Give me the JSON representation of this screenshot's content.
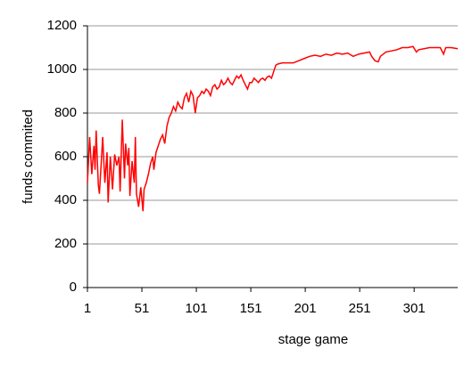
{
  "chart_data": {
    "type": "line",
    "x_label": "stage game",
    "y_label": "funds commited",
    "x": [
      1,
      3,
      5,
      7,
      8,
      9,
      11,
      12,
      14,
      15,
      17,
      19,
      20,
      22,
      24,
      26,
      28,
      30,
      31,
      33,
      35,
      36,
      38,
      39,
      40,
      42,
      44,
      45,
      46,
      48,
      50,
      52,
      53,
      55,
      57,
      59,
      61,
      62,
      64,
      66,
      68,
      70,
      72,
      74,
      76,
      78,
      80,
      82,
      84,
      86,
      88,
      90,
      92,
      94,
      96,
      98,
      100,
      102,
      104,
      106,
      108,
      110,
      112,
      114,
      116,
      118,
      120,
      122,
      124,
      126,
      128,
      130,
      132,
      134,
      136,
      138,
      140,
      142,
      144,
      146,
      148,
      150,
      152,
      154,
      156,
      158,
      160,
      162,
      164,
      166,
      168,
      170,
      172,
      174,
      176,
      180,
      185,
      190,
      195,
      200,
      205,
      210,
      215,
      220,
      225,
      230,
      235,
      240,
      245,
      250,
      255,
      260,
      262,
      265,
      268,
      270,
      275,
      280,
      285,
      290,
      295,
      300,
      303,
      305,
      310,
      315,
      320,
      325,
      328,
      330,
      335,
      341
    ],
    "series": [
      {
        "name": "funds commited",
        "color": "#ff0000",
        "values": [
          480,
          690,
          520,
          650,
          540,
          720,
          470,
          430,
          600,
          690,
          480,
          620,
          390,
          600,
          450,
          610,
          560,
          600,
          440,
          770,
          500,
          660,
          560,
          640,
          420,
          580,
          480,
          690,
          430,
          370,
          460,
          350,
          450,
          480,
          520,
          570,
          600,
          540,
          620,
          650,
          680,
          700,
          660,
          740,
          780,
          800,
          830,
          810,
          850,
          830,
          820,
          870,
          890,
          850,
          900,
          880,
          800,
          870,
          880,
          900,
          890,
          910,
          900,
          880,
          920,
          930,
          910,
          920,
          950,
          930,
          940,
          960,
          940,
          930,
          950,
          970,
          960,
          975,
          950,
          930,
          910,
          940,
          940,
          960,
          950,
          940,
          955,
          960,
          950,
          965,
          970,
          960,
          990,
          1020,
          1025,
          1030,
          1030,
          1030,
          1040,
          1050,
          1060,
          1065,
          1060,
          1070,
          1065,
          1075,
          1070,
          1075,
          1060,
          1070,
          1075,
          1080,
          1060,
          1040,
          1035,
          1060,
          1080,
          1085,
          1090,
          1100,
          1100,
          1105,
          1080,
          1090,
          1095,
          1100,
          1100,
          1100,
          1070,
          1100,
          1100,
          1095
        ]
      }
    ],
    "xlim": [
      1,
      341
    ],
    "xticks": [
      1,
      51,
      101,
      151,
      201,
      251,
      301
    ],
    "ylim": [
      0,
      1200
    ],
    "yticks": [
      0,
      200,
      400,
      600,
      800,
      1000,
      1200
    ],
    "grid": true
  }
}
